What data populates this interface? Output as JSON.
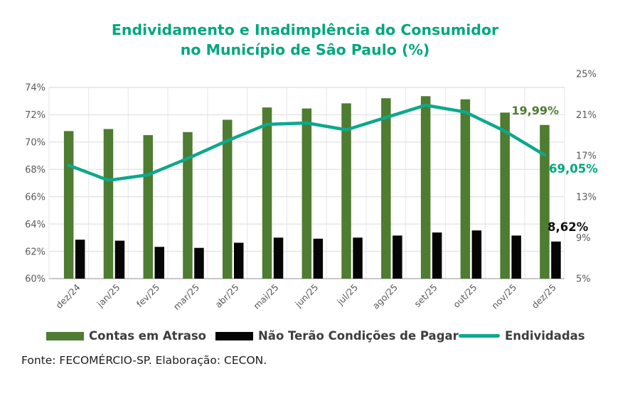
{
  "title": {
    "line1": "Endividamento e Inadimplência do Consumidor",
    "line2": "no Município de Sâo Paulo (%)"
  },
  "source": "Fonte: FECOMÉRCIO-SP. Elaboração: CECON.",
  "colors": {
    "title": "#00a77e",
    "bar_green": "#4e7c31",
    "bar_black": "#050505",
    "line_teal": "#0da88c",
    "axis_text": "#595959",
    "gridline": "#e4e4e4",
    "axis_line": "#c9c9c9"
  },
  "chart_data": {
    "type": "bar",
    "subtype": "clustered bars with overlaid line, dual y-axes",
    "title": "Endividamento e Inadimplência do Consumidor no Município de Sâo Paulo (%)",
    "categories": [
      "dez/24",
      "jan/25",
      "fev/25",
      "mar/25",
      "abr/25",
      "mai/25",
      "jun/25",
      "jul/25",
      "ago/25",
      "set/25",
      "out/25",
      "nov/25",
      "dez/25"
    ],
    "series": [
      {
        "name": "Contas em Atraso",
        "type": "bar",
        "axis": "right",
        "color": "#4e7c31",
        "values": [
          19.4,
          19.6,
          19.0,
          19.3,
          20.5,
          21.7,
          21.6,
          22.1,
          22.6,
          22.8,
          22.5,
          21.2,
          19.99
        ]
      },
      {
        "name": "Não Terão Condições de Pagar",
        "type": "bar",
        "axis": "right",
        "color": "#050505",
        "values": [
          8.8,
          8.7,
          8.1,
          8.0,
          8.5,
          9.0,
          8.9,
          9.0,
          9.2,
          9.5,
          9.7,
          9.2,
          8.62
        ]
      },
      {
        "name": "Endividadas",
        "type": "line",
        "axis": "left",
        "color": "#0da88c",
        "values": [
          68.3,
          67.2,
          67.6,
          68.8,
          70.1,
          71.3,
          71.4,
          70.9,
          71.8,
          72.7,
          72.2,
          70.8,
          69.05
        ]
      }
    ],
    "left_axis": {
      "min": 60,
      "max": 74,
      "ticks": [
        "74%",
        "72%",
        "70%",
        "68%",
        "66%",
        "64%",
        "62%",
        "60%"
      ]
    },
    "right_axis": {
      "min": 5,
      "max": 25,
      "ticks": [
        "25%",
        "21%",
        "17%",
        "13%",
        "9%",
        "5%"
      ]
    },
    "annotations": [
      {
        "text": "19,99%",
        "series": "Contas em Atraso",
        "category": "dez/25",
        "color": "#4e7c31"
      },
      {
        "text": "69,05%",
        "series": "Endividadas",
        "category": "dez/25",
        "color": "#00a77e"
      },
      {
        "text": "8,62%",
        "series": "Não Terão Condições de Pagar",
        "category": "dez/25",
        "color": "#0f0f0f"
      }
    ],
    "grid": true,
    "legend_position": "bottom"
  }
}
